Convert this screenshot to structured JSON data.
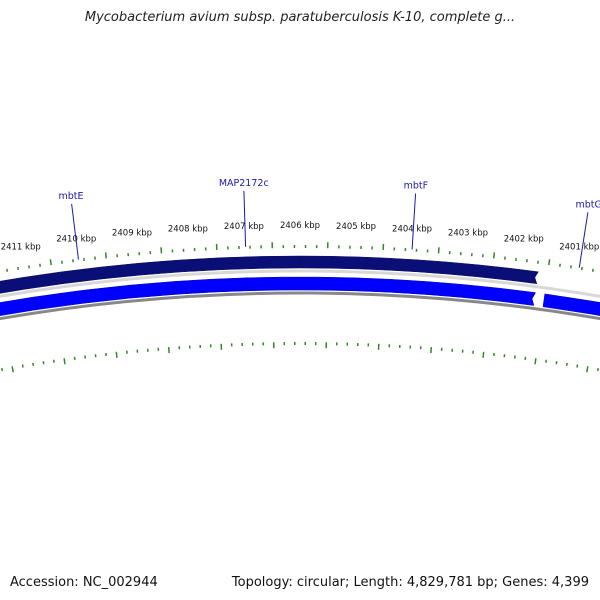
{
  "title": "Mycobacterium avium subsp. paratuberculosis K-10, complete g...",
  "footer": {
    "accession": "Accession: NC_002944",
    "summary": "Topology: circular; Length: 4,829,781 bp; Genes: 4,399"
  },
  "colors": {
    "ruler_ticks": "#2e8b22",
    "forward_strand": "#0a0f78",
    "reverse_strand": "#0000ff",
    "backbone": "#888888",
    "gene_label": "#1a1aa8"
  },
  "ruler_labels": [
    {
      "kbp": 2411,
      "text": "2411 kbp"
    },
    {
      "kbp": 2410,
      "text": "2410 kbp"
    },
    {
      "kbp": 2409,
      "text": "2409 kbp"
    },
    {
      "kbp": 2408,
      "text": "2408 kbp"
    },
    {
      "kbp": 2407,
      "text": "2407 kbp"
    },
    {
      "kbp": 2406,
      "text": "2406 kbp"
    },
    {
      "kbp": 2405,
      "text": "2405 kbp"
    },
    {
      "kbp": 2404,
      "text": "2404 kbp"
    },
    {
      "kbp": 2403,
      "text": "2403 kbp"
    },
    {
      "kbp": 2402,
      "text": "2402 kbp"
    },
    {
      "kbp": 2401,
      "text": "2401 kbp"
    }
  ],
  "gene_labels": [
    {
      "text": "mbtE",
      "kbp": 2410.0
    },
    {
      "text": "MAP2172c",
      "kbp": 2406.98
    },
    {
      "text": "mbtF",
      "kbp": 2403.98
    },
    {
      "text": "mbtG",
      "kbp": 2400.95
    }
  ],
  "features": {
    "outer_strand": [
      {
        "from_kbp": 2411.8,
        "to_kbp": 2406.0
      },
      {
        "from_kbp": 2406.0,
        "to_kbp": 2401.72
      }
    ],
    "inner_strand": [
      {
        "from_kbp": 2411.8,
        "to_kbp": 2408.3
      },
      {
        "from_kbp": 2408.3,
        "to_kbp": 2407.0
      },
      {
        "from_kbp": 2407.0,
        "to_kbp": 2401.72
      },
      {
        "from_kbp": 2401.5,
        "to_kbp": 2399.7
      }
    ]
  }
}
